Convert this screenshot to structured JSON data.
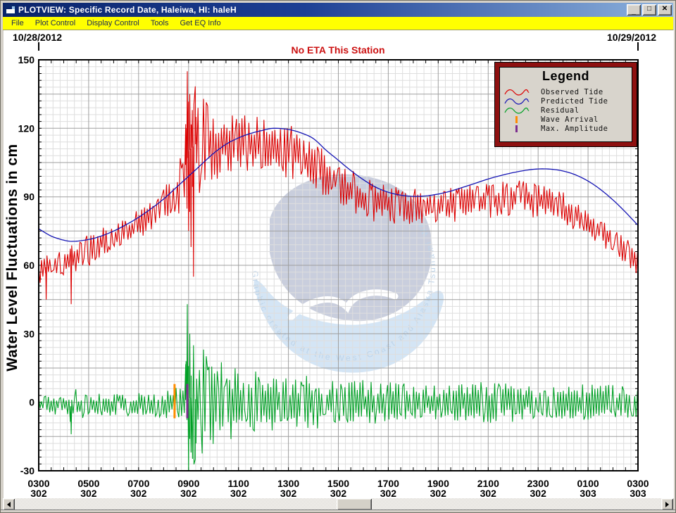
{
  "window": {
    "title": "PLOTVIEW: Specific Record Date, Haleiwa, HI: haleH",
    "controls": [
      {
        "name": "minimize",
        "glyph": "_"
      },
      {
        "name": "maximize",
        "glyph": "□"
      },
      {
        "name": "close",
        "glyph": "✕"
      }
    ]
  },
  "menu": {
    "items": [
      "File",
      "Plot Control",
      "Display Control",
      "Tools",
      "Get EQ Info"
    ]
  },
  "status": {
    "eta": "No ETA This Station"
  },
  "watermark_text": "Graphic created at the West Coast and Alaska Tsunami Warning Center",
  "legend": {
    "title": "Legend",
    "items": [
      {
        "label": "Observed Tide",
        "color_key": "observed",
        "swatch": "wave"
      },
      {
        "label": "Predicted Tide",
        "color_key": "predicted",
        "swatch": "wave"
      },
      {
        "label": "Residual",
        "color_key": "residual",
        "swatch": "wave"
      },
      {
        "label": "Wave Arrival",
        "color_key": "wave_arrival",
        "swatch": "bar"
      },
      {
        "label": "Max. Amplitude",
        "color_key": "max_amplitude",
        "swatch": "bar"
      }
    ]
  },
  "colors": {
    "titlebar_left": "#0a246a",
    "titlebar_right": "#8fb4de",
    "title_text": "#ffffff",
    "menubar_bg": "#ffff00",
    "menu_text": "#1b2a55",
    "chrome": "#d4d0c8",
    "plot_bg": "#ffffff",
    "grid_minor": "#dedede",
    "grid_major": "#9f9f9f",
    "axis": "#000000",
    "observed": "#dc0000",
    "predicted": "#1414b4",
    "residual": "#00a025",
    "wave_arrival": "#ff8c00",
    "max_amplitude": "#7b2d8e",
    "eta_text": "#cc1111",
    "legend_border": "#8e1010",
    "legend_bg": "#d8d4cc",
    "watermark_dark": "#c9cedd",
    "watermark_light": "#d4e5f5",
    "watermark_text": "#bed4e9"
  },
  "chart_data": {
    "type": "line",
    "title": "",
    "ylabel": "Water Level Fluctuations in cm",
    "ylim": [
      -30,
      150
    ],
    "y_ticks": [
      150,
      120,
      90,
      60,
      30,
      0,
      -30
    ],
    "x_hours_range": [
      3,
      27
    ],
    "x_ticks": [
      {
        "time": "0300",
        "day": "302"
      },
      {
        "time": "0500",
        "day": "302"
      },
      {
        "time": "0700",
        "day": "302"
      },
      {
        "time": "0900",
        "day": "302"
      },
      {
        "time": "1100",
        "day": "302"
      },
      {
        "time": "1300",
        "day": "302"
      },
      {
        "time": "1500",
        "day": "302"
      },
      {
        "time": "1700",
        "day": "302"
      },
      {
        "time": "1900",
        "day": "302"
      },
      {
        "time": "2100",
        "day": "302"
      },
      {
        "time": "2300",
        "day": "302"
      },
      {
        "time": "0100",
        "day": "303"
      },
      {
        "time": "0300",
        "day": "303"
      }
    ],
    "top_dates": {
      "left": "10/28/2012",
      "right": "10/29/2012"
    },
    "grid": {
      "major_x_hours": 2,
      "minor_div_x": 7,
      "major_y_cm": 15,
      "minor_y_cm": 3,
      "tick_x_minutes": 30
    },
    "series": [
      {
        "name": "Observed Tide",
        "color_key": "observed",
        "style": "noisy",
        "seed": 7,
        "envelope": [
          [
            3,
            58,
            6
          ],
          [
            3.5,
            60,
            6
          ],
          [
            4,
            62,
            7
          ],
          [
            4.5,
            64,
            7
          ],
          [
            5,
            66.5,
            7
          ],
          [
            5.5,
            69.5,
            7
          ],
          [
            6,
            72,
            6
          ],
          [
            6.5,
            74.5,
            6
          ],
          [
            7,
            77.5,
            7
          ],
          [
            7.5,
            81.5,
            7
          ],
          [
            8,
            86,
            8
          ],
          [
            8.5,
            92,
            10
          ],
          [
            8.8,
            98,
            16
          ],
          [
            9,
            110,
            32
          ],
          [
            9.3,
            113,
            26
          ],
          [
            9.6,
            114,
            20
          ],
          [
            10,
            113,
            16
          ],
          [
            10.5,
            113.5,
            14
          ],
          [
            11,
            114,
            13
          ],
          [
            11.5,
            113.5,
            13
          ],
          [
            12,
            113,
            12
          ],
          [
            12.5,
            111.5,
            12
          ],
          [
            13,
            110,
            12
          ],
          [
            13.5,
            107,
            11
          ],
          [
            14,
            103.5,
            11
          ],
          [
            14.5,
            99.5,
            10
          ],
          [
            15,
            96,
            10
          ],
          [
            15.5,
            92.5,
            10
          ],
          [
            16,
            89.5,
            9
          ],
          [
            16.5,
            87.5,
            9
          ],
          [
            17,
            86.5,
            9
          ],
          [
            17.5,
            86,
            8
          ],
          [
            18,
            85.5,
            8
          ],
          [
            18.5,
            85.5,
            8
          ],
          [
            19,
            86,
            8
          ],
          [
            19.5,
            86.5,
            8
          ],
          [
            20,
            87,
            8
          ],
          [
            20.5,
            87.5,
            8
          ],
          [
            21,
            88,
            8
          ],
          [
            21.5,
            88.5,
            8
          ],
          [
            22,
            89.5,
            8
          ],
          [
            22.5,
            89.5,
            8
          ],
          [
            23,
            88.5,
            8
          ],
          [
            23.5,
            87,
            8
          ],
          [
            24,
            85,
            7
          ],
          [
            24.5,
            82,
            7
          ],
          [
            25,
            78.5,
            7
          ],
          [
            25.5,
            75,
            7
          ],
          [
            26,
            71,
            6
          ],
          [
            26.5,
            66.5,
            6
          ],
          [
            27,
            61.5,
            6
          ]
        ],
        "spikes": [
          [
            3.3,
            45
          ],
          [
            4.3,
            43
          ],
          [
            8.9,
            120
          ],
          [
            8.95,
            145
          ],
          [
            9.0,
            75
          ],
          [
            9.05,
            135
          ],
          [
            9.1,
            68
          ],
          [
            9.15,
            128
          ],
          [
            9.2,
            55
          ],
          [
            9.3,
            125
          ]
        ]
      },
      {
        "name": "Predicted Tide",
        "color_key": "predicted",
        "style": "smooth",
        "points": [
          [
            3,
            76
          ],
          [
            3.5,
            72.8
          ],
          [
            4,
            71
          ],
          [
            4.4,
            70.5
          ],
          [
            5,
            71.3
          ],
          [
            5.5,
            72.8
          ],
          [
            6,
            75
          ],
          [
            6.5,
            77.8
          ],
          [
            7,
            81
          ],
          [
            7.5,
            84.8
          ],
          [
            8,
            89
          ],
          [
            8.5,
            94
          ],
          [
            9,
            99
          ],
          [
            9.5,
            104
          ],
          [
            10,
            109
          ],
          [
            10.5,
            113
          ],
          [
            11,
            115.8
          ],
          [
            11.5,
            117.8
          ],
          [
            12,
            119.2
          ],
          [
            12.4,
            120
          ],
          [
            13,
            119.5
          ],
          [
            13.5,
            118
          ],
          [
            14,
            115.5
          ],
          [
            14.5,
            110.5
          ],
          [
            15,
            106
          ],
          [
            15.5,
            101.5
          ],
          [
            16,
            97.5
          ],
          [
            16.5,
            94.2
          ],
          [
            17,
            92
          ],
          [
            17.5,
            90.7
          ],
          [
            18,
            90.2
          ],
          [
            18.5,
            90.4
          ],
          [
            19,
            91.2
          ],
          [
            19.5,
            92.5
          ],
          [
            20,
            94.2
          ],
          [
            20.5,
            96
          ],
          [
            21,
            97.8
          ],
          [
            21.5,
            99.3
          ],
          [
            22,
            100.6
          ],
          [
            22.5,
            101.6
          ],
          [
            23,
            102.2
          ],
          [
            23.5,
            102.1
          ],
          [
            24,
            101.3
          ],
          [
            24.5,
            99.6
          ],
          [
            25,
            96.9
          ],
          [
            25.5,
            93.2
          ],
          [
            26,
            88.6
          ],
          [
            26.5,
            83.3
          ],
          [
            27,
            77.5
          ]
        ]
      },
      {
        "name": "Residual",
        "color_key": "residual",
        "style": "noisy",
        "seed": 13,
        "envelope": [
          [
            3,
            -1,
            5
          ],
          [
            3.5,
            -1,
            5
          ],
          [
            4,
            -1,
            6
          ],
          [
            4.4,
            -2,
            8
          ],
          [
            5,
            -1,
            5
          ],
          [
            6,
            -1,
            5
          ],
          [
            7,
            -1,
            5
          ],
          [
            8,
            -1,
            6
          ],
          [
            8.6,
            0,
            7
          ],
          [
            8.9,
            1,
            24
          ],
          [
            9.1,
            2,
            32
          ],
          [
            9.4,
            1,
            26
          ],
          [
            9.7,
            0,
            22
          ],
          [
            10,
            0,
            20
          ],
          [
            10.5,
            0,
            17
          ],
          [
            11,
            0,
            15
          ],
          [
            11.5,
            0,
            14
          ],
          [
            12,
            0,
            13
          ],
          [
            13,
            0,
            12
          ],
          [
            14,
            0,
            12
          ],
          [
            15,
            0,
            11
          ],
          [
            16,
            0,
            10
          ],
          [
            17,
            0,
            9
          ],
          [
            18,
            0,
            9
          ],
          [
            19,
            0,
            8
          ],
          [
            20,
            0,
            9
          ],
          [
            21,
            0,
            9
          ],
          [
            22,
            0,
            9
          ],
          [
            23,
            0,
            8
          ],
          [
            24,
            0,
            8
          ],
          [
            25,
            0,
            8
          ],
          [
            26,
            0,
            8
          ],
          [
            27,
            0,
            8
          ]
        ],
        "spikes": [
          [
            4.3,
            -14
          ],
          [
            8.9,
            18
          ],
          [
            8.95,
            43
          ],
          [
            9.0,
            -30
          ],
          [
            9.05,
            30
          ],
          [
            9.1,
            -22
          ],
          [
            9.2,
            25
          ],
          [
            9.3,
            -18
          ]
        ]
      },
      {
        "name": "Wave Arrival",
        "color_key": "wave_arrival",
        "style": "vbar",
        "t": 8.44,
        "v0": -7,
        "v1": 8
      },
      {
        "name": "Max. Amplitude",
        "color_key": "max_amplitude",
        "style": "vbar",
        "t": 8.95,
        "v0": -7,
        "v1": 8
      }
    ]
  }
}
